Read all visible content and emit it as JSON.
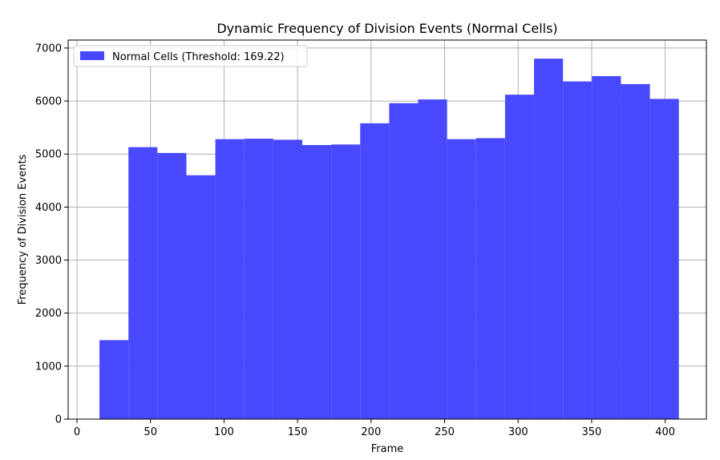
{
  "chart_data": {
    "type": "bar",
    "title": "Dynamic Frequency of Division Events (Normal Cells)",
    "xlabel": "Frame",
    "ylabel": "Frequency of Division Events",
    "xlim": [
      -6,
      428
    ],
    "ylim": [
      0,
      7150
    ],
    "xticks": [
      0,
      50,
      100,
      150,
      200,
      250,
      300,
      350,
      400
    ],
    "yticks": [
      0,
      1000,
      2000,
      3000,
      4000,
      5000,
      6000,
      7000
    ],
    "grid": true,
    "legend_position": "top-left",
    "bar_color": "#4848ff",
    "bins": [
      {
        "x0": 15.3,
        "x1": 35.0,
        "value": 1490
      },
      {
        "x0": 35.0,
        "x1": 54.7,
        "value": 5130
      },
      {
        "x0": 54.7,
        "x1": 74.4,
        "value": 5020
      },
      {
        "x0": 74.4,
        "x1": 94.1,
        "value": 4600
      },
      {
        "x0": 94.1,
        "x1": 113.8,
        "value": 5280
      },
      {
        "x0": 113.8,
        "x1": 133.5,
        "value": 5290
      },
      {
        "x0": 133.5,
        "x1": 153.2,
        "value": 5270
      },
      {
        "x0": 153.2,
        "x1": 172.9,
        "value": 5170
      },
      {
        "x0": 172.9,
        "x1": 192.6,
        "value": 5180
      },
      {
        "x0": 192.6,
        "x1": 212.3,
        "value": 5580
      },
      {
        "x0": 212.3,
        "x1": 232.0,
        "value": 5960
      },
      {
        "x0": 232.0,
        "x1": 251.7,
        "value": 6030
      },
      {
        "x0": 251.7,
        "x1": 271.4,
        "value": 5280
      },
      {
        "x0": 271.4,
        "x1": 291.1,
        "value": 5300
      },
      {
        "x0": 291.1,
        "x1": 310.8,
        "value": 6120
      },
      {
        "x0": 310.8,
        "x1": 330.5,
        "value": 6800
      },
      {
        "x0": 330.5,
        "x1": 350.2,
        "value": 6370
      },
      {
        "x0": 350.2,
        "x1": 369.9,
        "value": 6470
      },
      {
        "x0": 369.9,
        "x1": 389.6,
        "value": 6320
      },
      {
        "x0": 389.6,
        "x1": 409.3,
        "value": 6040
      }
    ],
    "series": [
      {
        "name": "Normal Cells (Threshold: 169.22)"
      }
    ]
  }
}
